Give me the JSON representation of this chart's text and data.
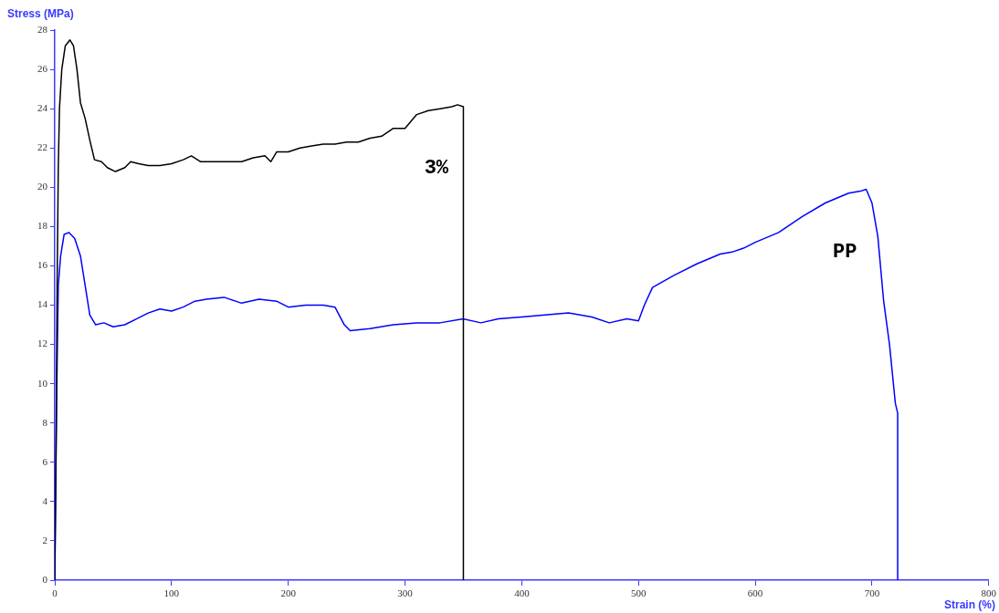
{
  "chart_data": {
    "type": "line",
    "xlabel": "Strain (%)",
    "ylabel": "Stress (MPa)",
    "xlim": [
      0,
      800
    ],
    "xticks": [
      0,
      100,
      200,
      300,
      400,
      500,
      600,
      700,
      800
    ],
    "ylim": [
      0,
      28
    ],
    "yticks": [
      0,
      2,
      4,
      6,
      8,
      10,
      12,
      14,
      16,
      18,
      20,
      22,
      24,
      26,
      28
    ],
    "grid": false,
    "legend": false,
    "marker": "none",
    "line_style": "solid",
    "series": [
      {
        "name": "3%",
        "color": "#000000",
        "x": [
          0,
          1,
          2,
          3,
          4,
          6,
          9,
          13,
          16,
          19,
          22,
          26,
          30,
          34,
          40,
          45,
          52,
          60,
          65,
          72,
          80,
          90,
          100,
          110,
          117,
          125,
          135,
          150,
          160,
          170,
          180,
          185,
          190,
          200,
          210,
          220,
          230,
          240,
          250,
          260,
          270,
          280,
          290,
          300,
          310,
          320,
          330,
          340,
          345,
          350,
          350
        ],
        "values": [
          0,
          6,
          15,
          21,
          24,
          26,
          27.2,
          27.5,
          27.2,
          26,
          24.3,
          23.5,
          22.4,
          21.4,
          21.3,
          21,
          20.8,
          21,
          21.3,
          21.2,
          21.1,
          21.1,
          21.2,
          21.4,
          21.6,
          21.3,
          21.3,
          21.3,
          21.3,
          21.5,
          21.6,
          21.3,
          21.8,
          21.8,
          22,
          22.1,
          22.2,
          22.2,
          22.3,
          22.3,
          22.5,
          22.6,
          23,
          23,
          23.7,
          23.9,
          24,
          24.1,
          24.2,
          24.1,
          0
        ]
      },
      {
        "name": "PP",
        "color": "#0000ff",
        "x": [
          0,
          1,
          2,
          3,
          5,
          8,
          12,
          17,
          22,
          26,
          30,
          35,
          42,
          50,
          60,
          70,
          80,
          90,
          100,
          110,
          120,
          130,
          145,
          160,
          175,
          190,
          200,
          215,
          230,
          240,
          248,
          253,
          270,
          290,
          310,
          330,
          350,
          365,
          380,
          400,
          420,
          440,
          460,
          475,
          490,
          500,
          505,
          512,
          530,
          550,
          570,
          580,
          590,
          600,
          620,
          640,
          660,
          680,
          690,
          695,
          700,
          705,
          710,
          715,
          720,
          722,
          722
        ],
        "values": [
          0,
          6,
          11,
          15,
          16.5,
          17.6,
          17.7,
          17.4,
          16.5,
          15,
          13.5,
          13,
          13.1,
          12.9,
          13,
          13.3,
          13.6,
          13.8,
          13.7,
          13.9,
          14.2,
          14.3,
          14.4,
          14.1,
          14.3,
          14.2,
          13.9,
          14,
          14,
          13.9,
          13,
          12.7,
          12.8,
          13,
          13.1,
          13.1,
          13.3,
          13.1,
          13.3,
          13.4,
          13.5,
          13.6,
          13.4,
          13.1,
          13.3,
          13.2,
          14,
          14.9,
          15.5,
          16.1,
          16.6,
          16.7,
          16.9,
          17.2,
          17.7,
          18.5,
          19.2,
          19.7,
          19.8,
          19.9,
          19.2,
          17.5,
          14.2,
          12,
          9,
          8.5,
          0
        ]
      }
    ]
  }
}
